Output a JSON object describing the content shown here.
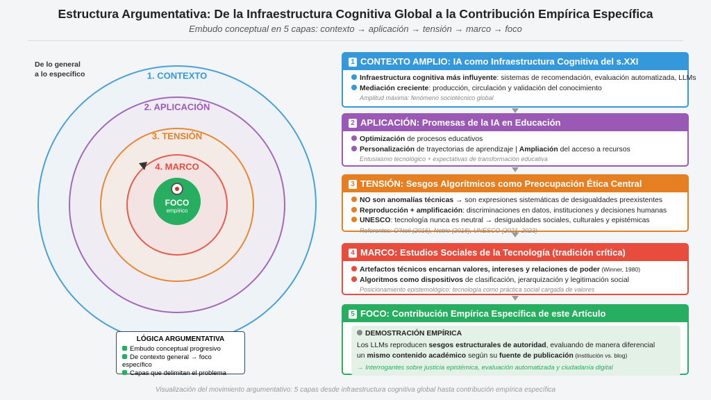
{
  "header": {
    "title": "Estructura Argumentativa: De la Infraestructura Cognitiva Global a la Contribución Empírica Específica",
    "subtitle": "Embudo conceptual en 5 capas: contexto → aplicación → tensión → marco → foco"
  },
  "diagram": {
    "side_label": [
      "De lo general",
      "a lo específico"
    ],
    "layers": [
      {
        "label": "1. CONTEXTO",
        "color": "#3498db"
      },
      {
        "label": "2. APLICACIÓN",
        "color": "#9b59b6"
      },
      {
        "label": "3. TENSIÓN",
        "color": "#e67e22"
      },
      {
        "label": "4. MARCO",
        "color": "#e74c3c"
      }
    ],
    "center": {
      "label": "FOCO",
      "sublabel": "empírico",
      "color": "#27ae60"
    }
  },
  "logic": {
    "title": "LÓGICA ARGUMENTATIVA",
    "items": [
      "Embudo conceptual progresivo",
      "De contexto general → foco específico",
      "Capas que delimitan el problema"
    ]
  },
  "panels": [
    {
      "number": "1",
      "title": "CONTEXTO AMPLIO: IA como Infraestructura Cognitiva del s.XXI",
      "color": "#3498db",
      "lines": [
        [
          {
            "text": "Infraestructura cognitiva más influyente",
            "style": "bold"
          },
          {
            "text": ": sistemas de recomendación, evaluación automatizada, LLMs",
            "style": "plain"
          }
        ],
        [
          {
            "text": "Mediación creciente",
            "style": "bold"
          },
          {
            "text": ": producción, circulación y validación del conocimiento",
            "style": "plain"
          }
        ]
      ],
      "note": "Amplitud máxima: fenómeno sociotécnico global"
    },
    {
      "number": "2",
      "title": "APLICACIÓN: Promesas de la IA en Educación",
      "color": "#9b59b6",
      "lines": [
        [
          {
            "text": "Optimización",
            "style": "bold"
          },
          {
            "text": " de procesos educativos",
            "style": "plain"
          }
        ],
        [
          {
            "text": "Personalización",
            "style": "bold"
          },
          {
            "text": " de trayectorias de aprendizaje | ",
            "style": "plain"
          },
          {
            "text": "Ampliación",
            "style": "bold"
          },
          {
            "text": " del acceso a recursos",
            "style": "plain"
          }
        ]
      ],
      "note": "Entusiasmo tecnológico + expectativas de transformación educativa"
    },
    {
      "number": "3",
      "title": "TENSIÓN: Sesgos Algorítmicos como Preocupación Ética Central",
      "color": "#e67e22",
      "lines": [
        [
          {
            "text": "NO son anomalías técnicas",
            "style": "bold"
          },
          {
            "text": " → son expresiones sistemáticas de desigualdades preexistentes",
            "style": "plain"
          }
        ],
        [
          {
            "text": "Reproducción + amplificación",
            "style": "bold"
          },
          {
            "text": ": discriminaciones en datos, instituciones y decisiones humanas",
            "style": "plain"
          }
        ],
        [
          {
            "text": "UNESCO",
            "style": "bold"
          },
          {
            "text": ": tecnología nunca es neutral → desigualdades sociales, culturales y epistémicas",
            "style": "plain"
          }
        ]
      ],
      "note": "Referentes: O'Neil (2016), Noble (2018), UNESCO (2021, 2023)"
    },
    {
      "number": "4",
      "title": "MARCO: Estudios Sociales de la Tecnología (tradición crítica)",
      "color": "#e74c3c",
      "lines": [
        [
          {
            "text": "Artefactos técnicos encarnan valores, intereses y relaciones de poder",
            "style": "bold"
          },
          {
            "text": " (Winner, 1980)",
            "style": "small"
          }
        ],
        [
          {
            "text": "Algoritmos como dispositivos",
            "style": "bold"
          },
          {
            "text": " de clasificación, jerarquización y legitimación social",
            "style": "plain"
          }
        ]
      ],
      "note": "Posicionamiento epistemológico: tecnología como práctica social cargada de valores"
    },
    {
      "number": "5",
      "title": "FOCO: Contribución Empírica Específica de este Artículo",
      "color": "#27ae60",
      "box_title": "DEMOSTRACIÓN EMPÍRICA",
      "lines": [
        [
          {
            "text": "Los LLMs reproducen ",
            "style": "plain"
          },
          {
            "text": "sesgos estructurales de autoridad",
            "style": "bold"
          },
          {
            "text": ", evaluando de manera diferencial",
            "style": "plain"
          }
        ],
        [
          {
            "text": "un ",
            "style": "plain"
          },
          {
            "text": "mismo contenido académico",
            "style": "bold"
          },
          {
            "text": " según su ",
            "style": "plain"
          },
          {
            "text": "fuente de publicación",
            "style": "bold"
          },
          {
            "text": " (institución vs. blog)",
            "style": "small"
          }
        ]
      ],
      "note": "→ Interrogantes sobre justicia epistémica, evaluación automatizada y ciudadanía digital"
    }
  ],
  "footer": "Visualización del movimiento argumentativo: 5 capas desde infraestructura cognitiva global hasta contribución empírica específica"
}
